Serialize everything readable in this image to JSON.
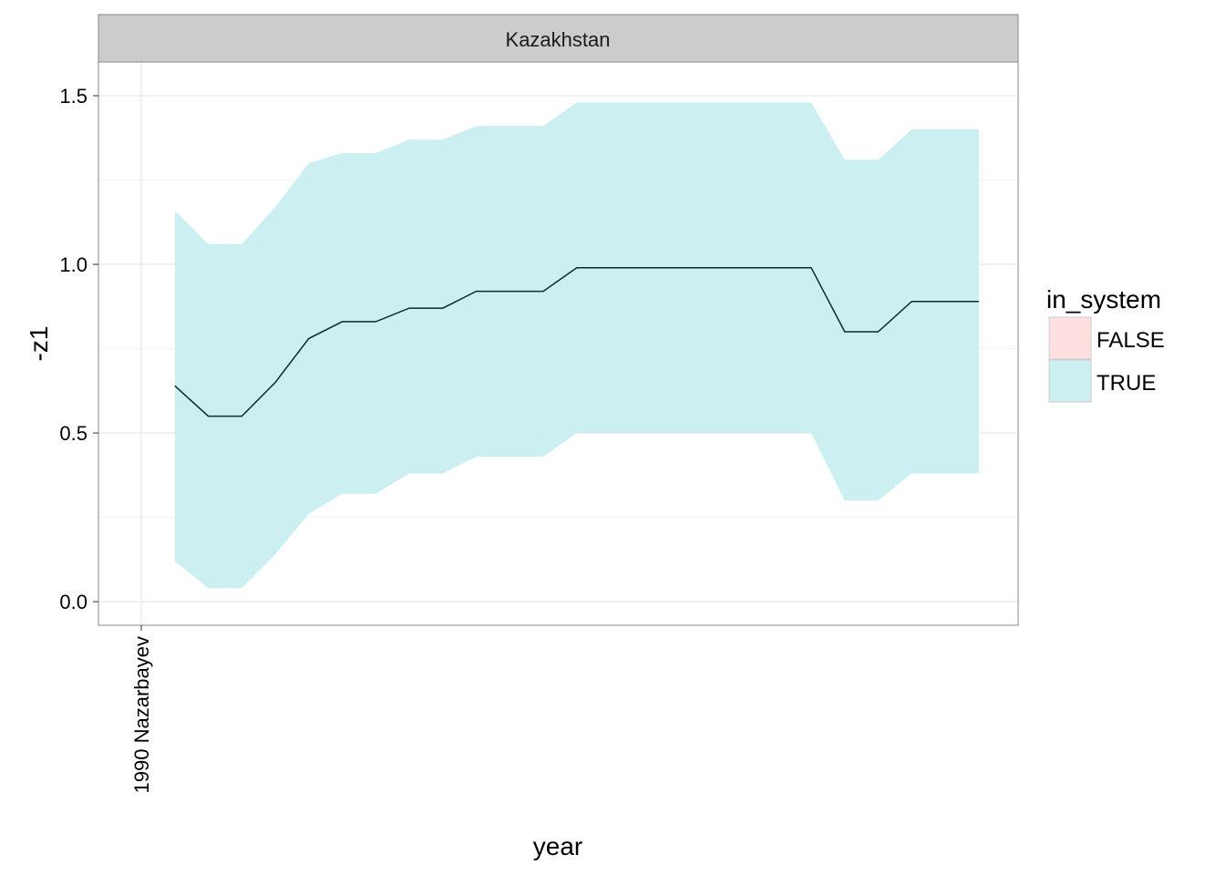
{
  "chart_data": {
    "type": "area",
    "facet": "Kazakhstan",
    "xlabel": "year",
    "ylabel": "-z1",
    "x_categories": [
      "1990 Nazarbayev"
    ],
    "ylim": [
      -0.07,
      1.6
    ],
    "y_ticks": [
      0.0,
      0.5,
      1.0,
      1.5
    ],
    "y_tick_labels": [
      "0.0",
      "0.5",
      "1.0",
      "1.5"
    ],
    "grid": true,
    "legend": {
      "title": "in_system",
      "position": "right",
      "entries": [
        {
          "label": "FALSE",
          "color": "#FFE0E0"
        },
        {
          "label": "TRUE",
          "color": "#CCF0F2"
        }
      ]
    },
    "series": [
      {
        "legend_entry": "TRUE",
        "color": "#CCF0F2",
        "line_color": "#0b2a2e",
        "x": [
          1991,
          1992,
          1993,
          1994,
          1995,
          1996,
          1997,
          1998,
          1999,
          2000,
          2001,
          2002,
          2003,
          2004,
          2005,
          2006,
          2007,
          2008,
          2009,
          2010,
          2011,
          2012,
          2013,
          2014,
          2015
        ],
        "y": [
          0.64,
          0.55,
          0.55,
          0.65,
          0.78,
          0.83,
          0.83,
          0.87,
          0.87,
          0.92,
          0.92,
          0.92,
          0.99,
          0.99,
          0.99,
          0.99,
          0.99,
          0.99,
          0.99,
          0.99,
          0.8,
          0.8,
          0.89,
          0.89,
          0.89
        ],
        "lower": [
          0.12,
          0.04,
          0.04,
          0.14,
          0.26,
          0.32,
          0.32,
          0.38,
          0.38,
          0.43,
          0.43,
          0.43,
          0.5,
          0.5,
          0.5,
          0.5,
          0.5,
          0.5,
          0.5,
          0.5,
          0.3,
          0.3,
          0.38,
          0.38,
          0.38
        ],
        "upper": [
          1.16,
          1.06,
          1.06,
          1.17,
          1.3,
          1.33,
          1.33,
          1.37,
          1.37,
          1.41,
          1.41,
          1.41,
          1.48,
          1.48,
          1.48,
          1.48,
          1.48,
          1.48,
          1.48,
          1.48,
          1.31,
          1.31,
          1.4,
          1.4,
          1.4
        ]
      }
    ]
  }
}
